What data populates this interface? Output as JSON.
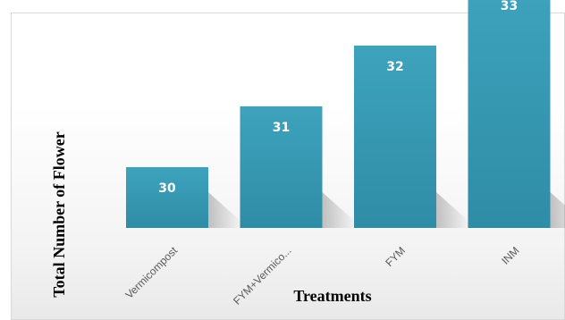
{
  "chart_data": {
    "type": "bar",
    "categories": [
      "Vermicompost",
      "FYM+Vermico...",
      "FYM",
      "INM"
    ],
    "values": [
      30,
      31,
      32,
      33
    ],
    "data_labels": [
      "30",
      "31",
      "32",
      "33"
    ],
    "xlabel": "Treatments",
    "ylabel": "Total Number of Flower",
    "bar_color": "#3ea3bd",
    "bar_color_dark": "#2f8ca6",
    "grid": false,
    "legend": "none"
  }
}
